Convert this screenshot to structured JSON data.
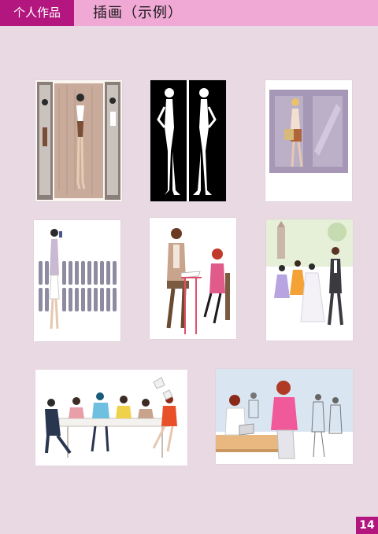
{
  "header": {
    "section_tab": "个人作品",
    "title": "插画（示例）"
  },
  "page_number": "14",
  "colors": {
    "accent": "#b3167e",
    "header_band": "#f0a8d4",
    "background": "#e9d9e3"
  },
  "illustrations": [
    {
      "name": "illustration-woman-mirrors"
    },
    {
      "name": "illustration-black-silhouettes"
    },
    {
      "name": "illustration-woman-shopping-bag"
    },
    {
      "name": "illustration-woman-phone-fence"
    },
    {
      "name": "illustration-couple-cafe"
    },
    {
      "name": "illustration-wedding"
    },
    {
      "name": "illustration-office-meeting"
    },
    {
      "name": "illustration-office-workers"
    }
  ]
}
